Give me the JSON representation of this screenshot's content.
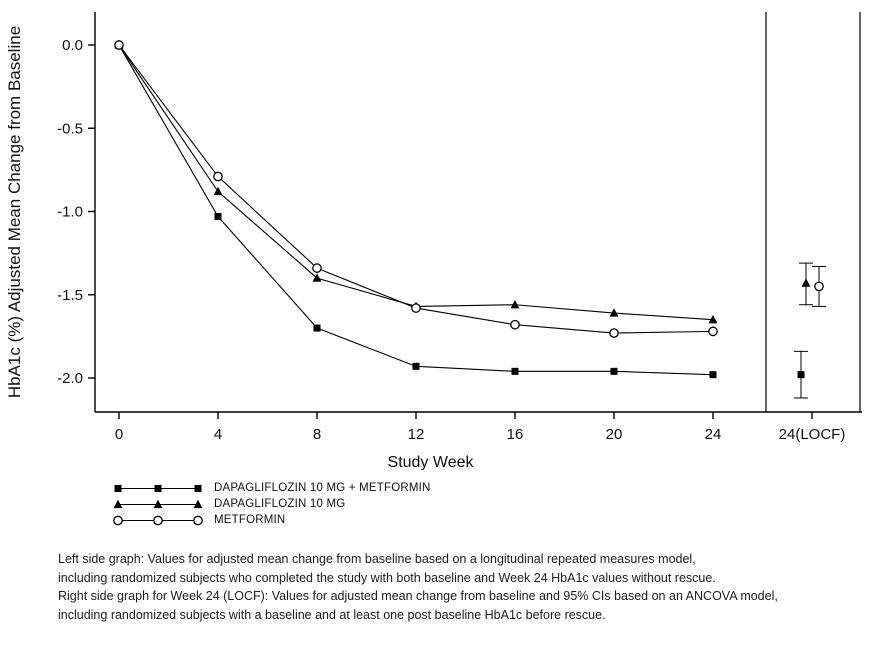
{
  "chart_data": {
    "type": "line",
    "title": "",
    "xlabel": "Study Week",
    "ylabel": "HbA1c (%) Adjusted Mean Change from Baseline",
    "x": [
      0,
      4,
      8,
      12,
      16,
      20,
      24
    ],
    "x_tick_labels": [
      "0",
      "4",
      "8",
      "12",
      "16",
      "20",
      "24",
      "24(LOCF)"
    ],
    "y_ticks": [
      0.0,
      -0.5,
      -1.0,
      -1.5,
      -2.0
    ],
    "y_tick_labels": [
      "0.0",
      "-0.5",
      "-1.0",
      "-1.5",
      "-2.0"
    ],
    "ylim": [
      -2.25,
      0.2
    ],
    "grid": false,
    "legend_position": "bottom-left",
    "right_panel_label": "24(LOCF)",
    "series": [
      {
        "name": "DAPAGLIFLOZIN 10 MG + METFORMIN",
        "marker": "filled-square",
        "values": [
          0.0,
          -1.03,
          -1.7,
          -1.93,
          -1.96,
          -1.96,
          -1.98
        ],
        "locf": {
          "value": -1.98,
          "ci_high": -1.84,
          "ci_low": -2.12
        }
      },
      {
        "name": "DAPAGLIFLOZIN 10 MG",
        "marker": "filled-triangle",
        "values": [
          0.0,
          -0.88,
          -1.4,
          -1.57,
          -1.56,
          -1.61,
          -1.65
        ],
        "locf": {
          "value": -1.43,
          "ci_high": -1.31,
          "ci_low": -1.56
        }
      },
      {
        "name": "METFORMIN",
        "marker": "open-circle",
        "values": [
          0.0,
          -0.79,
          -1.34,
          -1.58,
          -1.68,
          -1.73,
          -1.72
        ],
        "locf": {
          "value": -1.45,
          "ci_high": -1.33,
          "ci_low": -1.57
        }
      }
    ]
  },
  "colors": {
    "line": "#000000",
    "background": "#ffffff"
  },
  "footnotes": [
    "Left side graph: Values for adjusted mean change from baseline based on a longitudinal repeated measures model,",
    "including randomized subjects who completed the study with both baseline and Week 24 HbA1c values without rescue.",
    "Right side graph for Week 24 (LOCF): Values for adjusted mean change from baseline and 95% CIs based on an ANCOVA model,",
    "including randomized subjects with a baseline and at least one post baseline HbA1c before rescue."
  ]
}
